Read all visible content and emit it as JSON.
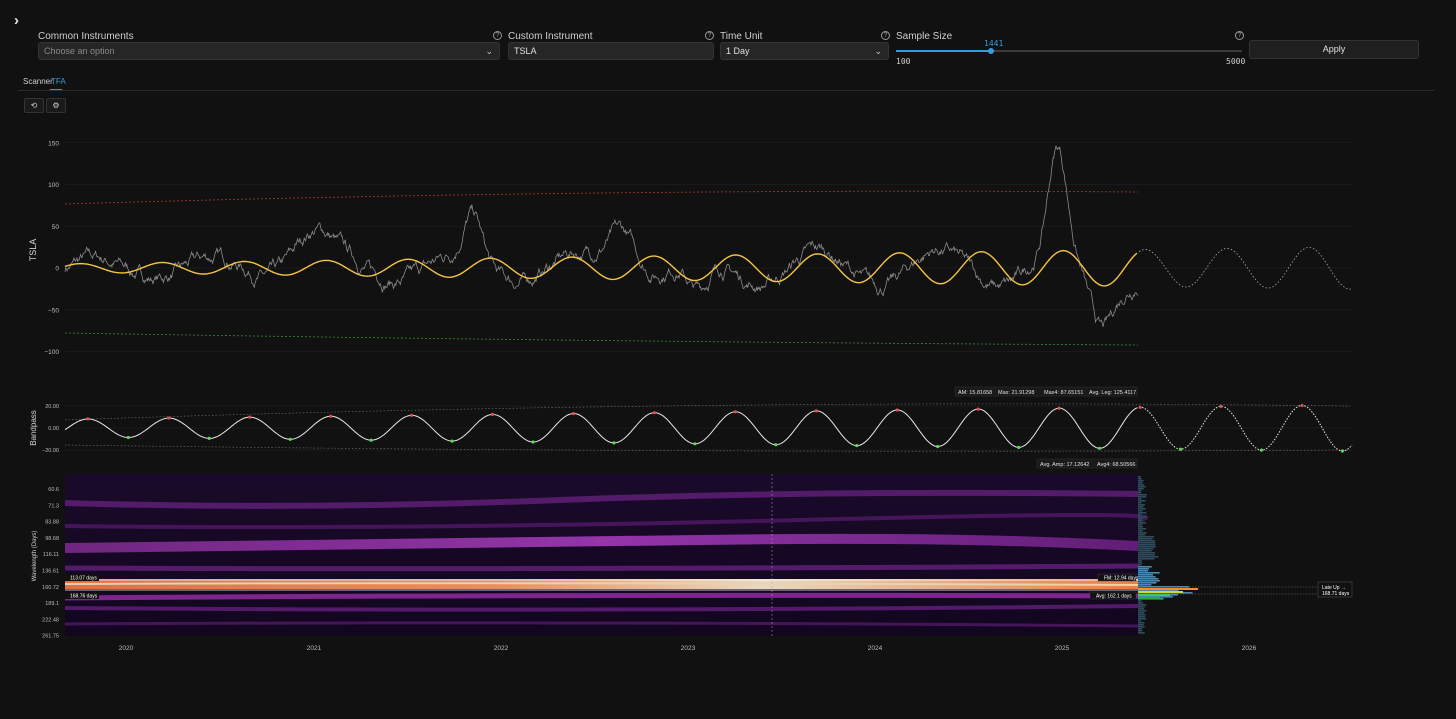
{
  "sidebar_toggle": {
    "icon": "chevron-right-icon",
    "glyph": "›"
  },
  "controls": {
    "common_instruments": {
      "label": "Common Instruments",
      "placeholder": "Choose an option"
    },
    "custom_instrument": {
      "label": "Custom Instrument",
      "value": "TSLA"
    },
    "time_unit": {
      "label": "Time Unit",
      "value": "1 Day"
    },
    "sample_size": {
      "label": "Sample Size",
      "value": 1441,
      "value_text": "1441",
      "min": 100,
      "max": 5000,
      "min_text": "100",
      "max_text": "5000"
    },
    "apply_label": "Apply"
  },
  "tabs": [
    {
      "label": "Scanner",
      "active": false
    },
    {
      "label": "TFA",
      "active": true
    }
  ],
  "toolbar": {
    "icons": [
      "reset-icon",
      "settings-icon"
    ]
  },
  "colors": {
    "accent": "#3a9bdc",
    "cycle": "#f5c542",
    "price": "#9a9a9a",
    "upper_band": "#a33a3a",
    "lower_band": "#3a8a3a",
    "peak": "#e05050",
    "trough": "#5cd65c"
  },
  "main_chart": {
    "ylabel": "TSLA",
    "yticks": [
      "150",
      "100",
      "50",
      "0",
      "−50",
      "−100"
    ],
    "ytick_values": [
      150,
      100,
      50,
      0,
      -50,
      -100
    ]
  },
  "bandpass": {
    "ylabel": "Bandpass",
    "yticks": [
      "20.00",
      "0.00",
      "−20.00"
    ],
    "legend_top": [
      "AM: 15.81658",
      "Max: 21.91298",
      "Max4: 87.65151",
      "Avg. Leg: 125.4117"
    ],
    "legend_bottom": [
      "Avg. Amp: 17.12642",
      "Avg4: 68.50566"
    ]
  },
  "spectrogram": {
    "ylabel": "Wavelength (Days)",
    "yticks": [
      "60.6",
      "71.3",
      "83.88",
      "98.68",
      "116.11",
      "136.61",
      "160.72",
      "189.1",
      "222.48",
      "261.75"
    ],
    "band_top_label": "113.07 days",
    "band_bottom_label": "168.76 days",
    "fm_label": "FM: 12.94 days",
    "avg_label": "Avg: 162.1 days",
    "late_up_title": "Late Up →",
    "late_up_value": "168.71 days"
  },
  "xaxis": {
    "years": [
      "2020",
      "2021",
      "2022",
      "2023",
      "2024",
      "2025",
      "2026"
    ]
  }
}
